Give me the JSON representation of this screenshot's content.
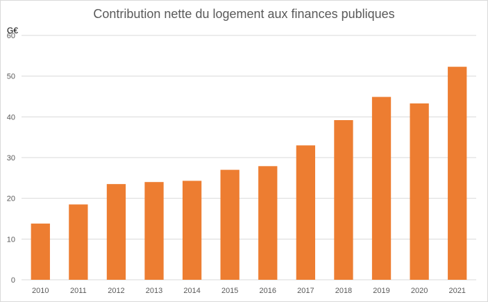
{
  "chart_data": {
    "type": "bar",
    "title": "Contribution nette du logement aux finances publiques",
    "ylabel": "G€",
    "xlabel": "",
    "categories": [
      "2010",
      "2011",
      "2012",
      "2013",
      "2014",
      "2015",
      "2016",
      "2017",
      "2018",
      "2019",
      "2020",
      "2021"
    ],
    "values": [
      13.8,
      18.5,
      23.5,
      24.0,
      24.3,
      27.0,
      27.9,
      33.0,
      39.2,
      44.9,
      43.3,
      52.3
    ],
    "ylim": [
      0,
      60
    ],
    "yticks": [
      0,
      10,
      20,
      30,
      40,
      50,
      60
    ],
    "grid": true,
    "legend": "none",
    "bar_color": "#ED7D31",
    "grid_color": "#D9D9D9"
  }
}
